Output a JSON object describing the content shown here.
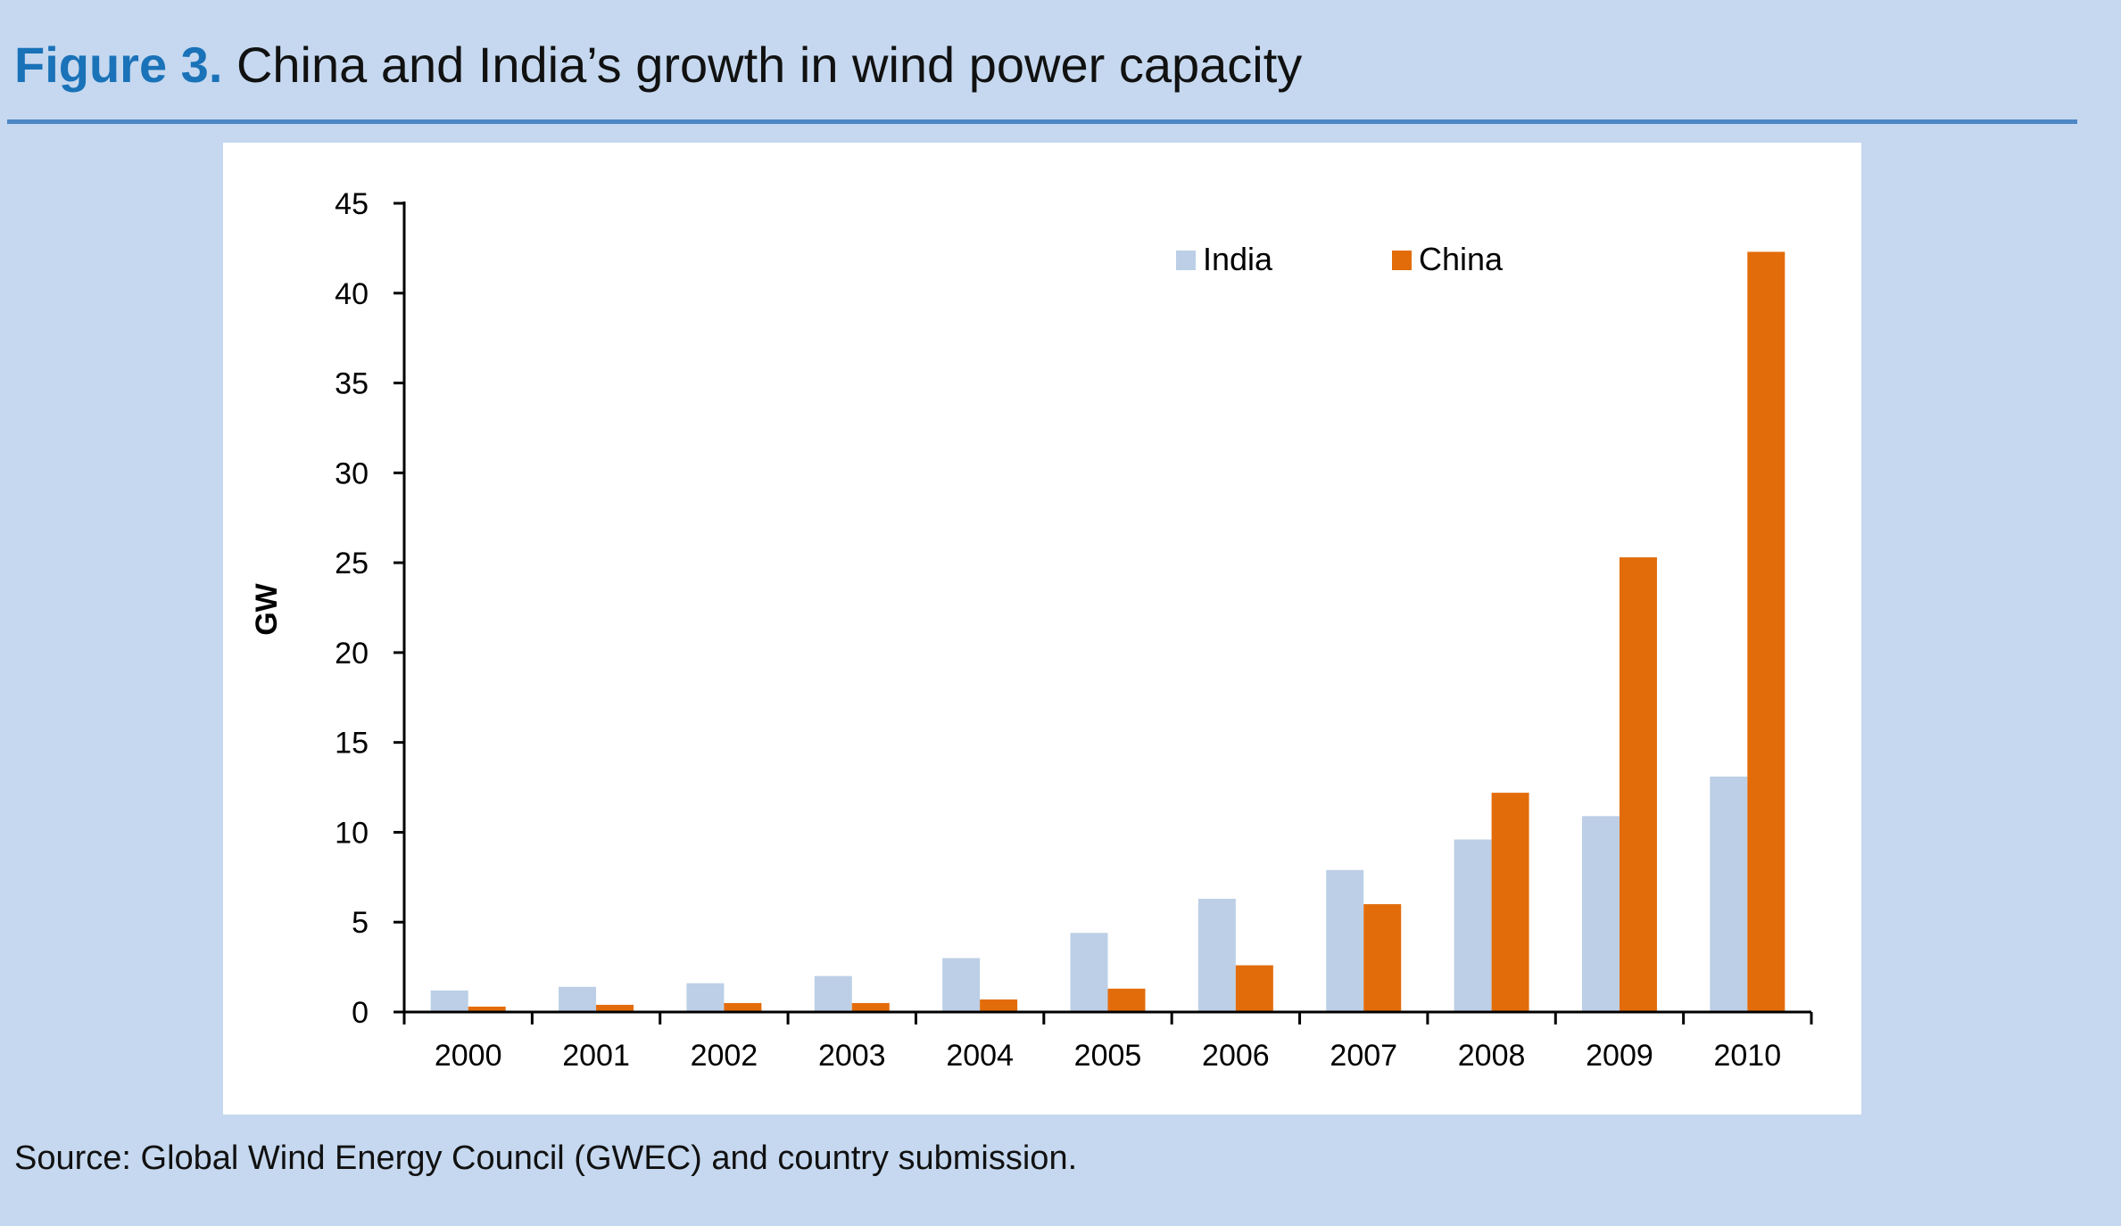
{
  "figure": {
    "label": "Figure 3.",
    "title": "China and India’s growth in wind power capacity",
    "source": "Source: Global Wind Energy Council (GWEC) and country submission."
  },
  "colors": {
    "background": "#c5d8ef",
    "figure_label": "#1a72b8",
    "rule": "#4d86c4",
    "india": "#bccfe6",
    "china": "#e36c0a"
  },
  "chart_data": {
    "type": "bar",
    "title": "",
    "xlabel": "",
    "ylabel": "GW",
    "ylim": [
      0,
      45
    ],
    "yticks": [
      0,
      5,
      10,
      15,
      20,
      25,
      30,
      35,
      40,
      45
    ],
    "grid": false,
    "legend_position": "top-right",
    "categories": [
      "2000",
      "2001",
      "2002",
      "2003",
      "2004",
      "2005",
      "2006",
      "2007",
      "2008",
      "2009",
      "2010"
    ],
    "series": [
      {
        "name": "India",
        "values": [
          1.2,
          1.4,
          1.6,
          2.0,
          3.0,
          4.4,
          6.3,
          7.9,
          9.6,
          10.9,
          13.1
        ]
      },
      {
        "name": "China",
        "values": [
          0.3,
          0.4,
          0.5,
          0.5,
          0.7,
          1.3,
          2.6,
          6.0,
          12.2,
          25.3,
          42.3
        ]
      }
    ]
  }
}
